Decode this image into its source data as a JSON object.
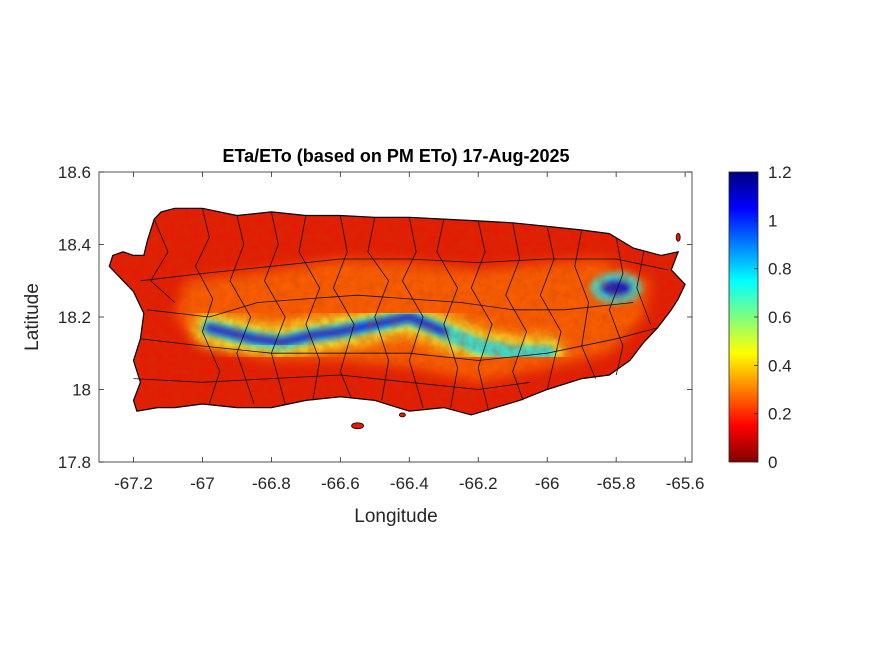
{
  "chart_data": {
    "type": "heatmap",
    "title": "ETa/ETo (based on PM ETo) 17-Aug-2025",
    "xlabel": "Longitude",
    "ylabel": "Latitude",
    "xlim": [
      -67.3,
      -65.58
    ],
    "ylim": [
      17.8,
      18.6
    ],
    "x_ticks": [
      -67.2,
      -67,
      -66.8,
      -66.6,
      -66.4,
      -66.2,
      -66,
      -65.8,
      -65.6
    ],
    "x_tick_labels": [
      "-67.2",
      "-67",
      "-66.8",
      "-66.6",
      "-66.4",
      "-66.2",
      "-66",
      "-65.8",
      "-65.6"
    ],
    "y_ticks": [
      17.8,
      18,
      18.2,
      18.4,
      18.6
    ],
    "y_tick_labels": [
      "17.8",
      "18",
      "18.2",
      "18.4",
      "18.6"
    ],
    "colorbar": {
      "colormap": "jet",
      "limits": [
        0,
        1.2
      ],
      "ticks": [
        0,
        0.2,
        0.4,
        0.6,
        0.8,
        1,
        1.2
      ],
      "tick_labels": [
        "0",
        "0.2",
        "0.4",
        "0.6",
        "0.8",
        "1",
        "1.2"
      ]
    },
    "grid": false,
    "legend": "colorbar-right",
    "high_value_band": {
      "description_values": "ETa/ETo ~0.9-1.2 along central mountain ridge",
      "path": [
        {
          "lon": -66.98,
          "lat": 18.17
        },
        {
          "lon": -66.85,
          "lat": 18.14
        },
        {
          "lon": -66.77,
          "lat": 18.13
        },
        {
          "lon": -66.68,
          "lat": 18.15
        },
        {
          "lon": -66.6,
          "lat": 18.16
        },
        {
          "lon": -66.5,
          "lat": 18.18
        },
        {
          "lon": -66.4,
          "lat": 18.2
        },
        {
          "lon": -66.3,
          "lat": 18.16
        },
        {
          "lon": -66.2,
          "lat": 18.12
        },
        {
          "lon": -66.1,
          "lat": 18.1
        },
        {
          "lon": -66.0,
          "lat": 18.1
        }
      ],
      "peak": {
        "lon": -65.8,
        "lat": 18.28,
        "value": 1.15
      }
    },
    "typical_values": {
      "coast": 0.05,
      "interior": 0.2
    }
  },
  "colors": {
    "axis": "#262626",
    "boundary": "#000000"
  }
}
